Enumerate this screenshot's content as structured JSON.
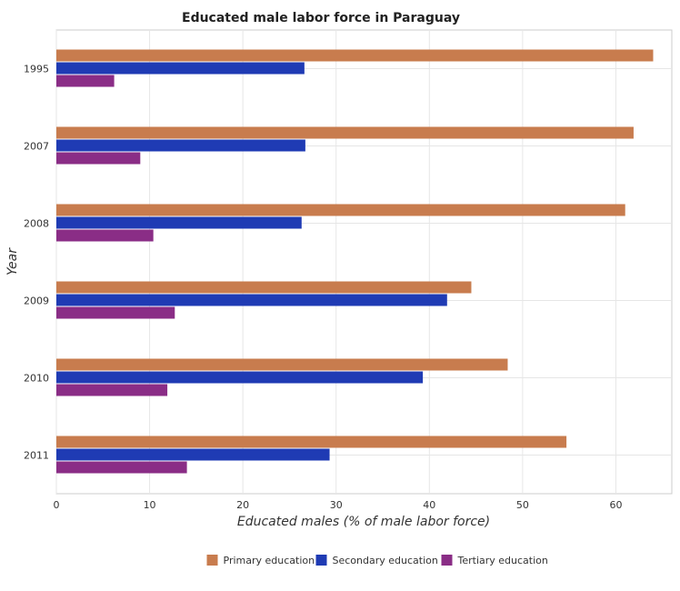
{
  "chart_data": {
    "type": "bar",
    "orientation": "horizontal",
    "title": "Educated male labor force in Paraguay",
    "xlabel": "Educated males (% of male labor force)",
    "ylabel": "Year",
    "xlim": [
      0,
      66
    ],
    "xticks": [
      "0",
      "10",
      "20",
      "30",
      "40",
      "50",
      "60"
    ],
    "categories": [
      "1995",
      "2007",
      "2008",
      "2009",
      "2010",
      "2011"
    ],
    "series": [
      {
        "name": "Primary education",
        "color": "#c87c4e",
        "values": [
          64.0,
          61.9,
          61.0,
          44.5,
          48.4,
          54.7
        ]
      },
      {
        "name": "Secondary education",
        "color": "#1f3bb4",
        "values": [
          26.6,
          26.7,
          26.3,
          41.9,
          39.3,
          29.3
        ]
      },
      {
        "name": "Tertiary education",
        "color": "#8a2d86",
        "values": [
          6.2,
          9.0,
          10.4,
          12.7,
          11.9,
          14.0
        ]
      }
    ],
    "grid": true,
    "legend_position": "bottom"
  }
}
